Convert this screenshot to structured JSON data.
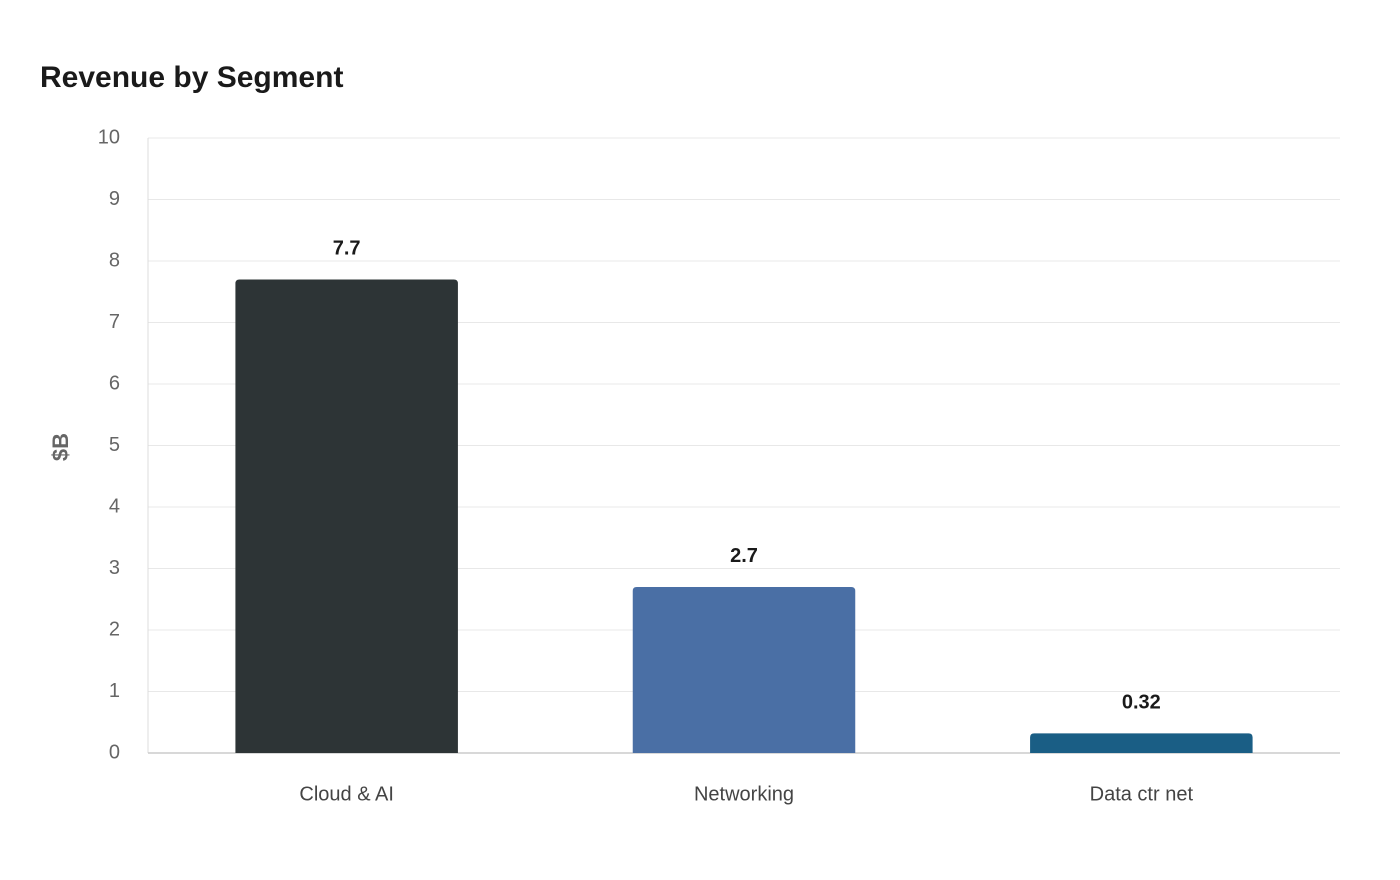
{
  "chart_data": {
    "type": "bar",
    "title": "Revenue by Segment",
    "y_label": "$B",
    "categories": [
      "Cloud & AI",
      "Networking",
      "Data ctr net"
    ],
    "values": [
      7.7,
      2.7,
      0.32
    ],
    "colors": [
      "#2d3436",
      "#4a6fa5",
      "#1a5e85"
    ],
    "ylim": [
      0,
      10
    ],
    "yticks": [
      0,
      1,
      2,
      3,
      4,
      5,
      6,
      7,
      8,
      9,
      10
    ],
    "grid": true
  }
}
